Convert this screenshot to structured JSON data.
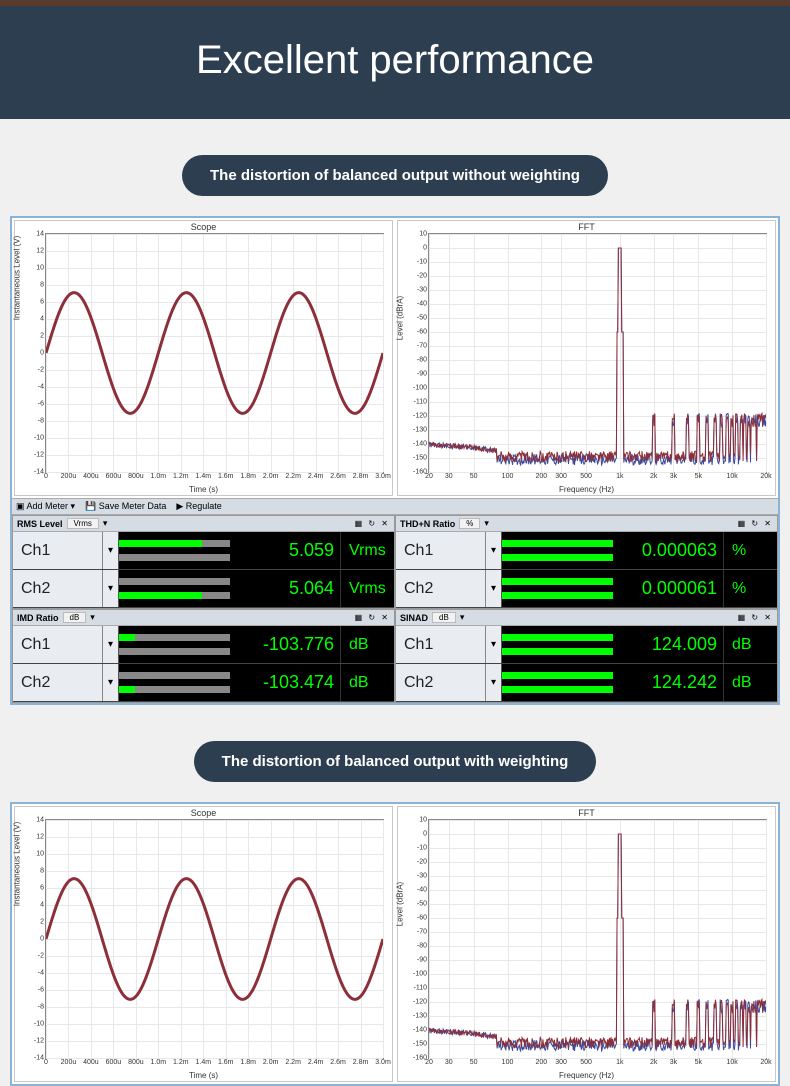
{
  "page": {
    "title": "Excellent performance",
    "pill1": "The distortion of balanced output without weighting",
    "pill2": "The distortion of balanced output with weighting",
    "header_bg": "#2c3e50",
    "header_fg": "#ffffff",
    "page_bg": "#f0f0f0",
    "panel_border": "#8ab3d6"
  },
  "toolbar": {
    "add_meter": "Add Meter",
    "save_meter": "Save Meter Data",
    "regulate": "Regulate"
  },
  "scope": {
    "title": "Scope",
    "type": "line",
    "xlabel": "Time (s)",
    "ylabel": "Instantaneous Level (V)",
    "xlim": [
      0,
      0.003
    ],
    "ylim": [
      -14,
      14
    ],
    "yticks": [
      -14,
      -12,
      -10,
      -8,
      -6,
      -4,
      -2,
      0,
      2,
      4,
      6,
      8,
      10,
      12,
      14
    ],
    "xticks_labels": [
      "0",
      "200u",
      "400u",
      "600u",
      "800u",
      "1.0m",
      "1.2m",
      "1.4m",
      "1.6m",
      "1.8m",
      "2.0m",
      "2.2m",
      "2.4m",
      "2.6m",
      "2.8m",
      "3.0m"
    ],
    "xticks_values": [
      0,
      0.0002,
      0.0004,
      0.0006,
      0.0008,
      0.001,
      0.0012,
      0.0014,
      0.0016,
      0.0018,
      0.002,
      0.0022,
      0.0024,
      0.0026,
      0.0028,
      0.003
    ],
    "line_color": "#8c2f39",
    "grid_color": "#e8e8e8",
    "background_color": "#ffffff",
    "amplitude": 7.1,
    "frequency_hz": 1000,
    "line_width": 1
  },
  "fft": {
    "title": "FFT",
    "type": "spectrum",
    "xlabel": "Frequency (Hz)",
    "ylabel": "Level (dBrA)",
    "xscale": "log",
    "xlim": [
      20,
      20000
    ],
    "ylim": [
      -160,
      10
    ],
    "yticks": [
      10,
      0,
      -10,
      -20,
      -30,
      -40,
      -50,
      -60,
      -70,
      -80,
      -90,
      -100,
      -110,
      -120,
      -130,
      -140,
      -150,
      -160
    ],
    "xticks_labels": [
      "20",
      "30",
      "50",
      "100",
      "200",
      "300",
      "500",
      "1k",
      "2k",
      "3k",
      "5k",
      "10k",
      "20k"
    ],
    "xticks_values": [
      20,
      30,
      50,
      100,
      200,
      300,
      500,
      1000,
      2000,
      3000,
      5000,
      10000,
      20000
    ],
    "grid_color": "#e8e8e8",
    "background_color": "#ffffff",
    "trace_colors": [
      "#8c2f39",
      "#3a4a9c"
    ],
    "fundamental_hz": 1000,
    "fundamental_db": 0,
    "noise_floor_db": -150,
    "harmonics_db": -128,
    "line_width": 1
  },
  "meters": {
    "rms": {
      "name": "RMS Level",
      "unit_sel": "Vrms",
      "ch1": {
        "label": "Ch1",
        "value": "5.059",
        "unit": "Vrms",
        "fill_pct": 75,
        "split": "top"
      },
      "ch2": {
        "label": "Ch2",
        "value": "5.064",
        "unit": "Vrms",
        "fill_pct": 75,
        "split": "bottom"
      }
    },
    "thdn": {
      "name": "THD+N Ratio",
      "unit_sel": "%",
      "ch1": {
        "label": "Ch1",
        "value": "0.000063",
        "unit": "%",
        "fill_pct": 100,
        "split": "top"
      },
      "ch2": {
        "label": "Ch2",
        "value": "0.000061",
        "unit": "%",
        "fill_pct": 100,
        "split": "bottom"
      }
    },
    "imd": {
      "name": "IMD Ratio",
      "unit_sel": "dB",
      "ch1": {
        "label": "Ch1",
        "value": "-103.776",
        "unit": "dB",
        "fill_pct": 14,
        "split": "top"
      },
      "ch2": {
        "label": "Ch2",
        "value": "-103.474",
        "unit": "dB",
        "fill_pct": 14,
        "split": "bottom"
      }
    },
    "sinad": {
      "name": "SINAD",
      "unit_sel": "dB",
      "ch1": {
        "label": "Ch1",
        "value": "124.009",
        "unit": "dB",
        "fill_pct": 100,
        "split": "top"
      },
      "ch2": {
        "label": "Ch2",
        "value": "124.242",
        "unit": "dB",
        "fill_pct": 100,
        "split": "bottom"
      }
    },
    "value_color": "#00ff00",
    "bg_color": "#000000",
    "label_bg": "#e9edf2"
  }
}
